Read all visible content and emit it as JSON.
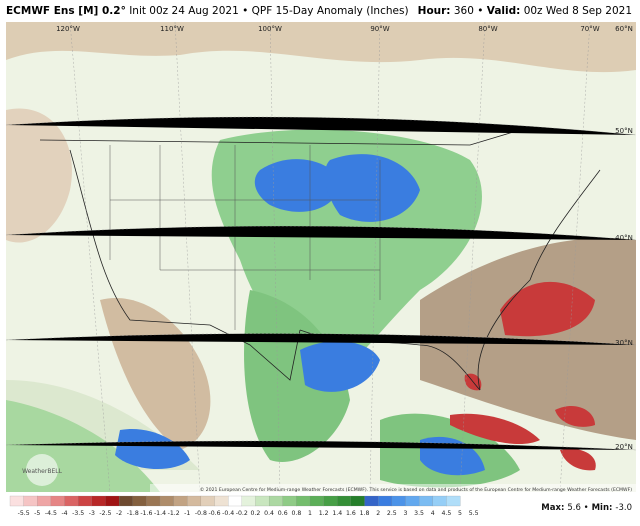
{
  "header": {
    "model": "ECMWF Ens [M] 0.2°",
    "description": "Init 00z 24 Aug 2021 • QPF 15-Day Anomaly (Inches)",
    "hour_label": "Hour:",
    "hour": "360 •",
    "valid_label": "Valid:",
    "valid": "00z Wed 8 Sep 2021"
  },
  "longitude_labels": [
    "120°W",
    "110°W",
    "100°W",
    "90°W",
    "80°W",
    "70°W",
    "60°N"
  ],
  "latitude_labels": [
    "50°N",
    "40°N",
    "30°N",
    "20°N"
  ],
  "logo": "WeatherBELL",
  "credit": "© 2021 European Centre for Medium-range Weather Forecasts (ECMWF). This service is based on data and products of the European Centre for Medium-range Weather Forecasts (ECMWF)",
  "colorbar": {
    "labels": [
      "-5.5",
      "-5",
      "-4.5",
      "-4",
      "-3.5",
      "-3",
      "-2.5",
      "-2",
      "-1.8",
      "-1.6",
      "-1.4",
      "-1.2",
      "-1",
      "-0.8",
      "-0.6",
      "-0.4",
      "-0.2",
      "0.2",
      "0.4",
      "0.6",
      "0.8",
      "1",
      "1.2",
      "1.4",
      "1.6",
      "1.8",
      "2",
      "2.5",
      "3",
      "3.5",
      "4",
      "4.5",
      "5",
      "5.5"
    ],
    "colors": [
      "#fbe0e0",
      "#f5c4c4",
      "#eea5a5",
      "#e58585",
      "#da6464",
      "#cc4444",
      "#b82828",
      "#a01414",
      "#6e4a30",
      "#84603f",
      "#9a7654",
      "#ae8c6a",
      "#c2a383",
      "#d4ba9e",
      "#e2cfb9",
      "#eee2d3",
      "#ffffff",
      "#e4f2dc",
      "#c9e6bf",
      "#acd8a2",
      "#8fcb86",
      "#74bd6d",
      "#5cae58",
      "#479f46",
      "#358f37",
      "#267f2b",
      "#3565c8",
      "#3a7de0",
      "#4c93e8",
      "#62a8ee",
      "#7bbcf2",
      "#95cef6",
      "#b0def9"
    ]
  },
  "stats": {
    "max_label": "Max:",
    "max": "5.6 •",
    "min_label": "Min:",
    "min": "-3.0"
  }
}
